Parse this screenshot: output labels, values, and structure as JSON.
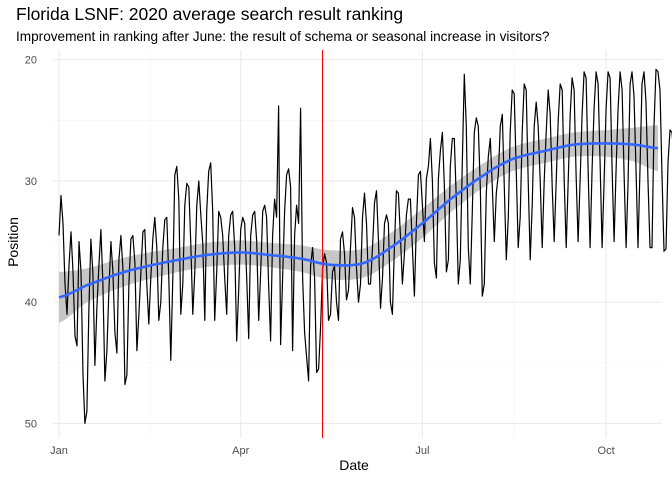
{
  "chart_data": {
    "type": "line",
    "title": "Florida LSNF: 2020 average search result ranking",
    "subtitle": "Improvement in ranking after June: the result of schema or seasonal increase in visitors?",
    "xlabel": "Date",
    "ylabel": "Position",
    "y_reversed": true,
    "ylim": [
      51.2,
      19.2
    ],
    "xlim": [
      "2019-12-29",
      "2020-10-29"
    ],
    "x_ticks": [
      {
        "date": "2020-01-01",
        "label": "Jan"
      },
      {
        "date": "2020-04-01",
        "label": "Apr"
      },
      {
        "date": "2020-07-01",
        "label": "Jul"
      },
      {
        "date": "2020-10-01",
        "label": "Oct"
      }
    ],
    "y_ticks": [
      20,
      30,
      40,
      50
    ],
    "vline": {
      "date": "2020-05-12",
      "color": "#ff0000"
    },
    "grid": true,
    "series": [
      {
        "start_date": "2020-01-01",
        "step_days": 1,
        "color": "#000000",
        "values": [
          34.5,
          31.2,
          33.5,
          38.5,
          41.0,
          37.0,
          34.2,
          37.5,
          42.8,
          43.6,
          35.0,
          37.5,
          46.0,
          50.0,
          49.0,
          40.5,
          34.8,
          37.6,
          45.2,
          40.4,
          37.0,
          34.0,
          38.5,
          46.5,
          44.0,
          39.0,
          35.0,
          37.5,
          42.5,
          44.2,
          36.5,
          34.5,
          37.2,
          46.8,
          46.0,
          38.5,
          34.8,
          34.5,
          36.8,
          44.0,
          41.0,
          37.5,
          34.2,
          34.0,
          38.5,
          41.8,
          38.0,
          34.8,
          33.0,
          35.5,
          41.5,
          40.0,
          35.5,
          33.2,
          33.0,
          38.0,
          44.8,
          38.0,
          29.5,
          28.8,
          31.5,
          41.0,
          38.5,
          32.0,
          30.2,
          30.5,
          35.2,
          41.0,
          37.5,
          32.0,
          30.0,
          32.8,
          35.2,
          41.5,
          32.5,
          29.2,
          28.5,
          32.5,
          41.5,
          37.5,
          32.5,
          33.0,
          34.5,
          38.0,
          41.0,
          34.5,
          32.8,
          32.5,
          35.5,
          43.2,
          39.0,
          34.0,
          33.0,
          33.5,
          38.0,
          43.0,
          34.5,
          32.8,
          32.5,
          35.0,
          41.5,
          37.5,
          32.5,
          32.0,
          33.0,
          38.5,
          43.2,
          34.5,
          31.5,
          33.0,
          23.8,
          43.5,
          38.0,
          32.5,
          29.5,
          29.0,
          30.5,
          44.0,
          34.5,
          32.0,
          33.5,
          24.0,
          38.0,
          42.5,
          44.5,
          46.5,
          37.0,
          35.5,
          38.0,
          45.8,
          45.5,
          42.0,
          37.2,
          36.0,
          36.8,
          41.5,
          41.0,
          37.5,
          37.0,
          40.0,
          41.5,
          34.8,
          34.2,
          36.0,
          39.8,
          39.0,
          35.5,
          32.2,
          33.0,
          37.2,
          40.0,
          38.5,
          33.0,
          31.0,
          33.5,
          38.5,
          38.5,
          35.5,
          31.8,
          30.8,
          35.0,
          40.5,
          38.0,
          33.5,
          32.8,
          33.5,
          40.0,
          41.0,
          35.5,
          30.8,
          31.0,
          34.5,
          38.5,
          36.0,
          32.8,
          31.5,
          31.5,
          35.5,
          39.5,
          33.5,
          29.5,
          29.2,
          32.0,
          35.0,
          29.8,
          28.8,
          26.5,
          30.0,
          36.8,
          38.0,
          29.8,
          27.5,
          26.0,
          30.5,
          37.5,
          36.5,
          28.8,
          26.5,
          26.5,
          31.5,
          38.5,
          36.5,
          28.5,
          21.2,
          25.5,
          35.5,
          38.5,
          32.5,
          26.0,
          24.8,
          25.5,
          30.5,
          39.5,
          38.5,
          31.0,
          28.0,
          26.5,
          30.5,
          35.0,
          31.0,
          29.5,
          25.5,
          24.5,
          30.5,
          36.5,
          33.0,
          26.0,
          22.5,
          22.8,
          29.0,
          35.5,
          33.0,
          26.0,
          22.0,
          22.5,
          30.0,
          36.5,
          32.0,
          25.5,
          23.5,
          25.5,
          30.0,
          35.5,
          30.0,
          26.0,
          22.5,
          24.5,
          30.5,
          35.0,
          30.0,
          25.0,
          22.0,
          22.5,
          30.0,
          35.5,
          30.0,
          24.5,
          21.5,
          22.5,
          29.5,
          35.0,
          30.0,
          24.5,
          21.0,
          21.5,
          29.0,
          35.5,
          29.0,
          24.0,
          21.0,
          22.0,
          28.5,
          35.5,
          30.0,
          24.0,
          21.0,
          21.5,
          29.0,
          35.0,
          29.0,
          24.0,
          21.0,
          22.5,
          29.5,
          35.5,
          30.0,
          22.0,
          21.0,
          23.0,
          29.0,
          35.5,
          29.0,
          22.0,
          21.0,
          23.5,
          30.0,
          35.5,
          35.5,
          25.5,
          20.8,
          21.0,
          22.5,
          29.5,
          35.8,
          35.6,
          28.5,
          25.8,
          26.0,
          28.0,
          35.5,
          35.8,
          27.8,
          25.8,
          26.5
        ]
      }
    ],
    "trend": {
      "color": "#3366ff",
      "band_color": "#bdbdbd",
      "fit_dates": [
        "2020-01-01",
        "2020-01-15",
        "2020-02-01",
        "2020-02-15",
        "2020-03-01",
        "2020-03-15",
        "2020-04-01",
        "2020-04-15",
        "2020-05-01",
        "2020-05-15",
        "2020-06-01",
        "2020-06-15",
        "2020-07-01",
        "2020-07-15",
        "2020-08-01",
        "2020-08-15",
        "2020-09-01",
        "2020-09-15",
        "2020-10-01",
        "2020-10-15",
        "2020-10-27"
      ],
      "fit_values": [
        39.6,
        38.6,
        37.6,
        37.0,
        36.5,
        36.1,
        35.9,
        36.1,
        36.4,
        36.9,
        36.8,
        35.5,
        33.5,
        31.5,
        29.5,
        28.2,
        27.5,
        27.0,
        26.9,
        27.0,
        27.3
      ],
      "se_values": [
        2.1,
        1.4,
        1.2,
        1.1,
        1.0,
        1.0,
        1.0,
        1.0,
        1.1,
        1.2,
        1.2,
        1.2,
        1.2,
        1.1,
        1.0,
        1.0,
        1.0,
        1.0,
        1.1,
        1.4,
        1.9
      ]
    }
  }
}
